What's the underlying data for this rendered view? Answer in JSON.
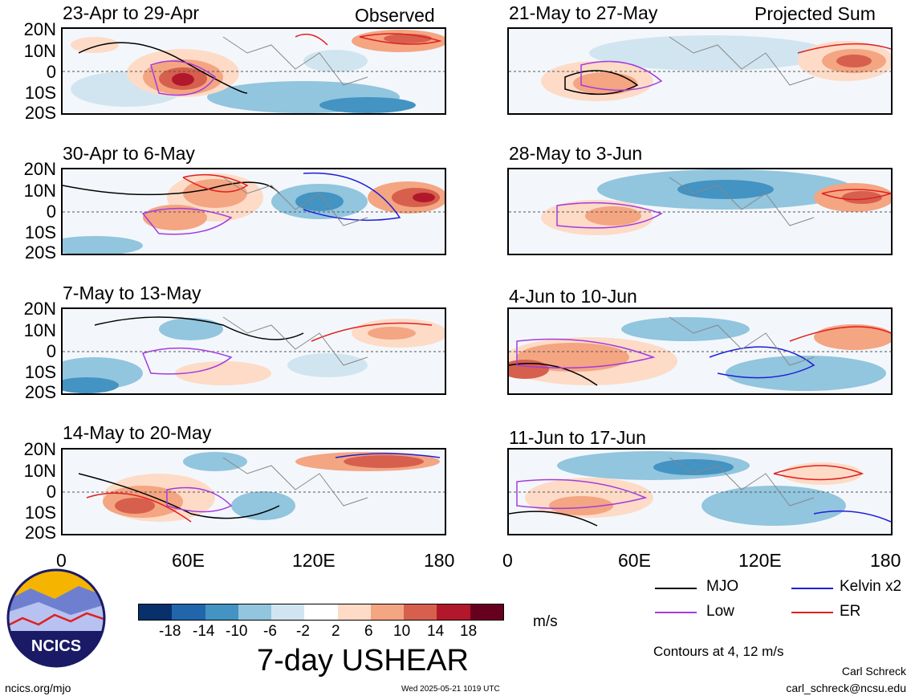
{
  "header": {
    "left": "Observed",
    "right": "Projected Sum"
  },
  "panels": [
    {
      "id": "p1",
      "title": "23-Apr to 29-Apr"
    },
    {
      "id": "p2",
      "title": "30-Apr to 6-May"
    },
    {
      "id": "p3",
      "title": "7-May to 13-May"
    },
    {
      "id": "p4",
      "title": "14-May to 20-May"
    },
    {
      "id": "p5",
      "title": "21-May to 27-May"
    },
    {
      "id": "p6",
      "title": "28-May to 3-Jun"
    },
    {
      "id": "p7",
      "title": "4-Jun to 10-Jun"
    },
    {
      "id": "p8",
      "title": "11-Jun to 17-Jun"
    }
  ],
  "lat_labels": [
    "20N",
    "10N",
    "0",
    "10S",
    "20S"
  ],
  "lon_labels": [
    "0",
    "60E",
    "120E",
    "180"
  ],
  "colorbar": {
    "colors": [
      "#08306b",
      "#2166ac",
      "#4393c3",
      "#92c5de",
      "#d1e5f0",
      "#ffffff",
      "#fddbc7",
      "#f4a582",
      "#d6604d",
      "#b2182b",
      "#67001f"
    ],
    "ticks": [
      "-18",
      "-14",
      "-10",
      "-6",
      "-2",
      "2",
      "6",
      "10",
      "14",
      "18"
    ],
    "unit": "m/s"
  },
  "legend": {
    "mjo": {
      "label": "MJO",
      "color": "#000000"
    },
    "kelvin": {
      "label": "Kelvin x2",
      "color": "#1f1fd6"
    },
    "low": {
      "label": "Low",
      "color": "#a33be0"
    },
    "er": {
      "label": "ER",
      "color": "#e02020"
    }
  },
  "contour_note": "Contours at 4, 12 m/s",
  "main_title": "7-day USHEAR",
  "logo_text": "NCICS",
  "footer": {
    "left": "ncics.org/mjo",
    "center": "Wed 2025-05-21 1019 UTC",
    "author": "Carl Schreck",
    "email": "carl_schreck@ncsu.edu"
  }
}
